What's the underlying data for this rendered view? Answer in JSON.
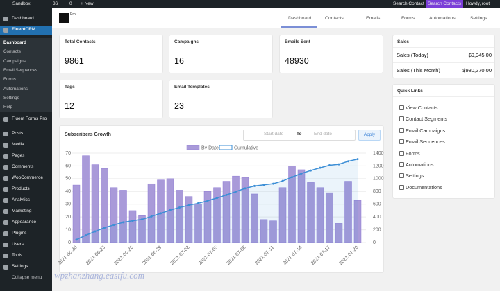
{
  "admin_bar": {
    "site": "Sandbox",
    "updates": "36",
    "comments": "0",
    "new": "+ New",
    "search": "Search Contact",
    "search_contacts": "Search Contacts",
    "howdy": "Howdy, root"
  },
  "sidebar": {
    "top": [
      "Dashboard",
      "FluentCRM"
    ],
    "submenu": [
      "Dashboard",
      "Contacts",
      "Campaigns",
      "Email Sequences",
      "Forms",
      "Automations",
      "Settings",
      "Help"
    ],
    "menu": [
      "Fluent Forms Pro",
      "Posts",
      "Media",
      "Pages",
      "Comments",
      "WooCommerce",
      "Products",
      "Analytics",
      "Marketing",
      "Appearance",
      "Plugins",
      "Users",
      "Tools",
      "Settings"
    ],
    "collapse": "Collapse menu"
  },
  "topnav": {
    "badge": "Pro",
    "tabs": [
      "Dashboard",
      "Contacts",
      "Emails",
      "Forms",
      "Automations",
      "Settings"
    ]
  },
  "stats": [
    {
      "label": "Total Contacts",
      "value": "9861"
    },
    {
      "label": "Campaigns",
      "value": "16"
    },
    {
      "label": "Emails Sent",
      "value": "48930"
    },
    {
      "label": "Tags",
      "value": "12"
    },
    {
      "label": "Email Templates",
      "value": "23"
    }
  ],
  "sales": {
    "title": "Sales",
    "rows": [
      {
        "label": "Sales (Today)",
        "value": "$9,945.00"
      },
      {
        "label": "Sales (This Month)",
        "value": "$980,270.00"
      }
    ]
  },
  "quick_links": {
    "title": "Quick Links",
    "items": [
      "View Contacts",
      "Contact Segments",
      "Email Campaigns",
      "Email Sequences",
      "Forms",
      "Automations",
      "Settings",
      "Documentations"
    ]
  },
  "growth": {
    "title": "Subscribers Growth",
    "start": "Start date",
    "to": "To",
    "end": "End date",
    "apply": "Apply",
    "categories": [
      "2021-06-20",
      null,
      null,
      "2021-06-23",
      null,
      null,
      "2021-06-26",
      null,
      null,
      "2021-06-29",
      null,
      null,
      "2021-07-02",
      null,
      null,
      "2021-07-05",
      null,
      null,
      "2021-07-08",
      null,
      null,
      "2021-07-11",
      null,
      null,
      "2021-07-14",
      null,
      null,
      "2021-07-17",
      null,
      null,
      "2021-07-20"
    ],
    "series": [
      {
        "name": "By Date",
        "color": "#a99ad9",
        "values": [
          45,
          68,
          61,
          58,
          43,
          41,
          25,
          21,
          46,
          49,
          50,
          41,
          36,
          30,
          40,
          43,
          48,
          52,
          51,
          38,
          18,
          17,
          43,
          60,
          57,
          47,
          43,
          39,
          15,
          48,
          33
        ]
      },
      {
        "name": "Cumulative",
        "color": "#3d8fd6",
        "axis": "y2",
        "values": [
          45,
          113,
          174,
          232,
          275,
          316,
          341,
          362,
          408,
          457,
          507,
          548,
          584,
          614,
          654,
          697,
          745,
          797,
          848,
          886,
          904,
          921,
          964,
          1024,
          1081,
          1128,
          1171,
          1210,
          1225,
          1273,
          1306
        ]
      }
    ],
    "ylim": [
      0,
      70
    ],
    "yticks": [
      0,
      10,
      20,
      30,
      40,
      50,
      60,
      70
    ],
    "y2lim": [
      0,
      1400
    ],
    "y2ticks": [
      0,
      200,
      400,
      600,
      800,
      1000,
      1200,
      1400
    ],
    "grid": true
  },
  "watermark": "wpzhanzhang.eastfu.com"
}
